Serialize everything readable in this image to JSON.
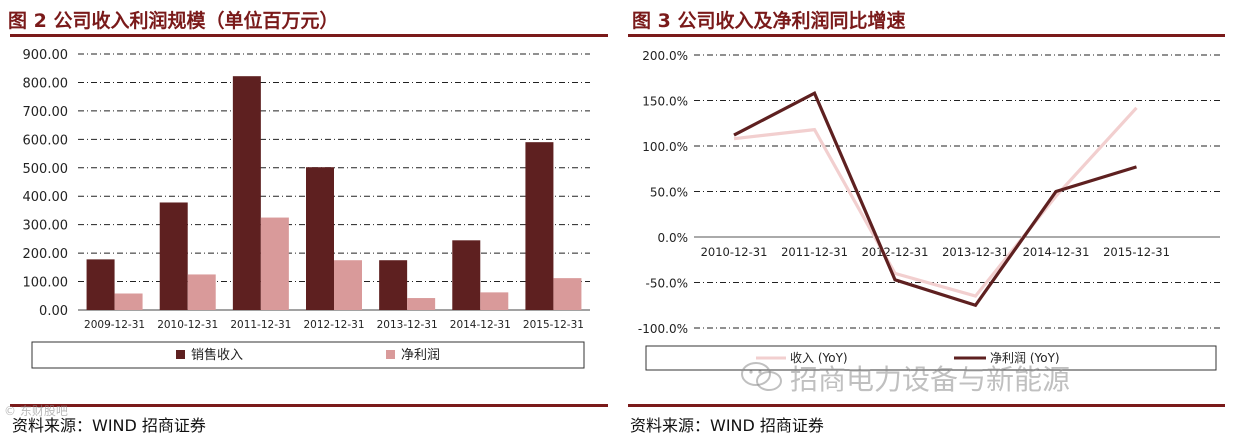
{
  "left": {
    "title": "图 2 公司收入利润规模（单位百万元）",
    "source": "资料来源：WIND 招商证券"
  },
  "right": {
    "title": "图 3 公司收入及净利润同比增速",
    "source": "资料来源：WIND 招商证券"
  },
  "watermark": "招商电力设备与新能源",
  "corner_watermark": "© 东财股吧",
  "colors": {
    "dark": "#5e2020",
    "light": "#d99a9a",
    "light_line": "#f2cfcf",
    "rule": "#7a1a1a"
  },
  "chart_data": [
    {
      "type": "bar",
      "categories": [
        "2009-12-31",
        "2010-12-31",
        "2011-12-31",
        "2012-12-31",
        "2013-12-31",
        "2014-12-31",
        "2015-12-31"
      ],
      "series": [
        {
          "name": "销售收入",
          "values": [
            178,
            378,
            822,
            502,
            175,
            245,
            590
          ]
        },
        {
          "name": "净利润",
          "values": [
            58,
            125,
            325,
            175,
            42,
            62,
            112
          ]
        }
      ],
      "ylim": [
        0,
        900
      ],
      "yticks": [
        "0.00",
        "100.00",
        "200.00",
        "300.00",
        "400.00",
        "500.00",
        "600.00",
        "700.00",
        "800.00",
        "900.00"
      ],
      "grid": true,
      "legend": "bottom"
    },
    {
      "type": "line",
      "categories": [
        "2010-12-31",
        "2011-12-31",
        "2012-12-31",
        "2013-12-31",
        "2014-12-31",
        "2015-12-31"
      ],
      "series": [
        {
          "name": "收入 (YoY)",
          "values": [
            108,
            118,
            -40,
            -65,
            45,
            142
          ]
        },
        {
          "name": "净利润 (YoY)",
          "values": [
            112,
            158,
            -47,
            -75,
            50,
            77
          ]
        }
      ],
      "ylim": [
        -100,
        200
      ],
      "yticks": [
        "-100.0%",
        "-50.0%",
        "0.0%",
        "50.0%",
        "100.0%",
        "150.0%",
        "200.0%"
      ],
      "grid": true,
      "legend": "bottom"
    }
  ]
}
